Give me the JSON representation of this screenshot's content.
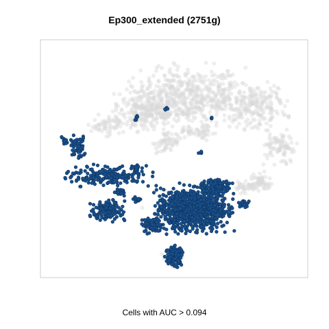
{
  "chart_data": {
    "type": "scatter",
    "title": "Ep300_extended (2751g)",
    "caption": "Cells with AUC > 0.094",
    "xlabel": "",
    "ylabel": "",
    "xlim": [
      0,
      100
    ],
    "ylim": [
      0,
      100
    ],
    "grid": false,
    "legend": "none",
    "colors": {
      "background_cells": "#d9d9d9",
      "selected_cells": "#1a4f8a",
      "selected_outline": "#0d3561",
      "frame": "#cccccc"
    },
    "series": [
      {
        "role": "background",
        "clusters": [
          {
            "cx": 56,
            "cy": 76,
            "rx": 20,
            "ry": 12,
            "n": 520
          },
          {
            "cx": 40,
            "cy": 70,
            "rx": 13,
            "ry": 9,
            "n": 260
          },
          {
            "cx": 80,
            "cy": 72,
            "rx": 12,
            "ry": 9,
            "n": 220
          },
          {
            "cx": 90,
            "cy": 54,
            "rx": 6,
            "ry": 6,
            "n": 90
          },
          {
            "cx": 82,
            "cy": 40,
            "rx": 4,
            "ry": 4,
            "n": 60
          },
          {
            "cx": 25,
            "cy": 64,
            "rx": 6,
            "ry": 4,
            "n": 60
          },
          {
            "cx": 48,
            "cy": 57,
            "rx": 5,
            "ry": 4,
            "n": 60
          },
          {
            "cx": 60,
            "cy": 61,
            "rx": 6,
            "ry": 3,
            "n": 50
          },
          {
            "cx": 55,
            "cy": 30,
            "rx": 15,
            "ry": 7,
            "n": 80
          },
          {
            "cx": 50,
            "cy": 8,
            "rx": 5,
            "ry": 4,
            "n": 30
          },
          {
            "cx": 76,
            "cy": 38,
            "rx": 4,
            "ry": 3,
            "n": 30
          }
        ]
      },
      {
        "role": "selected",
        "clusters": [
          {
            "cx": 57,
            "cy": 29,
            "rx": 13,
            "ry": 9,
            "n": 1000
          },
          {
            "cx": 66,
            "cy": 38,
            "rx": 5,
            "ry": 3,
            "n": 150
          },
          {
            "cx": 42,
            "cy": 22,
            "rx": 3.5,
            "ry": 3,
            "n": 90
          },
          {
            "cx": 25,
            "cy": 43,
            "rx": 15,
            "ry": 4,
            "n": 200
          },
          {
            "cx": 14,
            "cy": 55,
            "rx": 3,
            "ry": 4.5,
            "n": 60
          },
          {
            "cx": 9,
            "cy": 58,
            "rx": 1.5,
            "ry": 2,
            "n": 15
          },
          {
            "cx": 25,
            "cy": 28,
            "rx": 5.5,
            "ry": 4,
            "n": 150
          },
          {
            "cx": 50,
            "cy": 9,
            "rx": 3,
            "ry": 4,
            "n": 140
          },
          {
            "cx": 30,
            "cy": 36,
            "rx": 2,
            "ry": 1.5,
            "n": 20
          },
          {
            "cx": 36,
            "cy": 33,
            "rx": 1.5,
            "ry": 1.5,
            "n": 15
          },
          {
            "cx": 76,
            "cy": 31,
            "rx": 2,
            "ry": 2,
            "n": 20
          },
          {
            "cx": 36,
            "cy": 46,
            "rx": 2,
            "ry": 1.5,
            "n": 15
          },
          {
            "cx": 36,
            "cy": 67,
            "rx": 0.8,
            "ry": 1.5,
            "n": 8
          },
          {
            "cx": 47,
            "cy": 71,
            "rx": 0.6,
            "ry": 0.8,
            "n": 5
          },
          {
            "cx": 60,
            "cy": 53,
            "rx": 0.8,
            "ry": 0.8,
            "n": 5
          },
          {
            "cx": 64,
            "cy": 67,
            "rx": 0.6,
            "ry": 0.6,
            "n": 4
          },
          {
            "cx": 65,
            "cy": 40,
            "rx": 2,
            "ry": 1,
            "n": 20
          }
        ]
      }
    ]
  }
}
